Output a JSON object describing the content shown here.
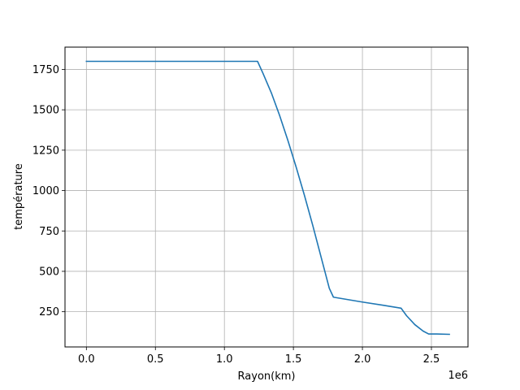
{
  "chart_data": {
    "type": "line",
    "title": "",
    "xlabel": "Rayon(km)",
    "ylabel": "température",
    "x_offset_label": "1e6",
    "xlim": [
      -155000,
      2765000
    ],
    "ylim": [
      32,
      1888
    ],
    "grid": true,
    "x_ticks": [
      0,
      500000,
      1000000,
      1500000,
      2000000,
      2500000
    ],
    "x_tick_labels": [
      "0.0",
      "0.5",
      "1.0",
      "1.5",
      "2.0",
      "2.5"
    ],
    "y_ticks": [
      250,
      500,
      750,
      1000,
      1250,
      1500,
      1750
    ],
    "y_tick_labels": [
      "250",
      "500",
      "750",
      "1000",
      "1250",
      "1500",
      "1750"
    ],
    "series": [
      {
        "color": "#1f77b4",
        "x": [
          0,
          1240000,
          1280000,
          1340000,
          1400000,
          1460000,
          1520000,
          1580000,
          1640000,
          1700000,
          1760000,
          1790000,
          2000000,
          2150000,
          2280000,
          2320000,
          2380000,
          2440000,
          2480000,
          2540000,
          2630000
        ],
        "y": [
          1800,
          1800,
          1725,
          1605,
          1465,
          1310,
          1145,
          970,
          785,
          590,
          395,
          340,
          310,
          290,
          272,
          225,
          170,
          130,
          112,
          112,
          110
        ]
      }
    ]
  }
}
